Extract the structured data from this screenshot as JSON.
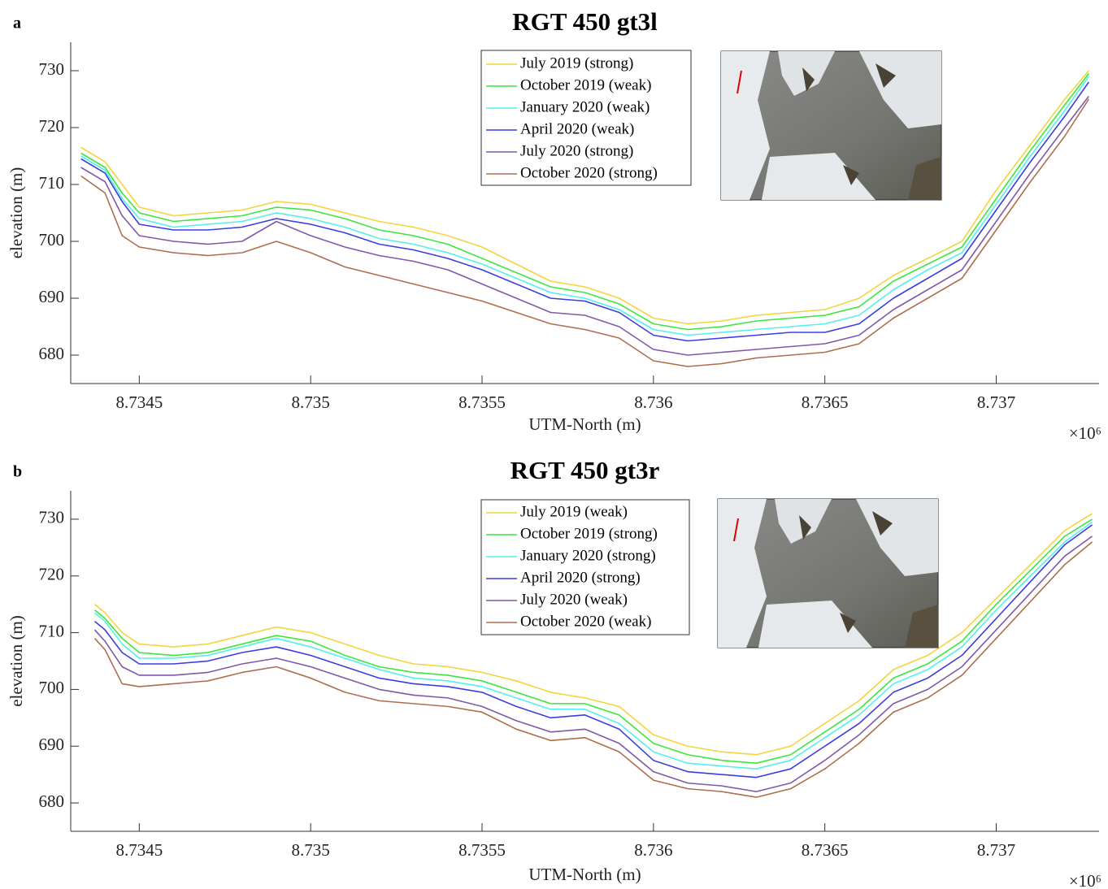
{
  "chart_data": [
    {
      "type": "line",
      "panel_label": "a",
      "title": "RGT 450 gt3l",
      "xlabel": "UTM-North (m)",
      "ylabel": "elevation (m)",
      "x_scale_label": "×10⁶",
      "xlim": [
        8.7343,
        8.7373
      ],
      "ylim": [
        675,
        735
      ],
      "xticks": [
        8.7345,
        8.735,
        8.7355,
        8.736,
        8.7365,
        8.737
      ],
      "yticks": [
        680,
        690,
        700,
        710,
        720,
        730
      ],
      "x": [
        8.73433,
        8.7344,
        8.73445,
        8.7345,
        8.7346,
        8.7347,
        8.7348,
        8.7349,
        8.735,
        8.7351,
        8.7352,
        8.7353,
        8.7354,
        8.7355,
        8.7356,
        8.7357,
        8.7358,
        8.7359,
        8.736,
        8.7361,
        8.7362,
        8.7363,
        8.7364,
        8.7365,
        8.7366,
        8.7367,
        8.7368,
        8.7369,
        8.737,
        8.7371,
        8.7372,
        8.73727
      ],
      "series": [
        {
          "name": "July 2019 (strong)",
          "color": "#f2d43c",
          "values": [
            716.5,
            714,
            710,
            706,
            704.5,
            705,
            705.5,
            707,
            706.5,
            705,
            703.5,
            702.5,
            701,
            699,
            696,
            693,
            692,
            690,
            686.5,
            685.5,
            686,
            687,
            687.5,
            688,
            690,
            694,
            697,
            700,
            709,
            717,
            725,
            730
          ]
        },
        {
          "name": "October 2019 (weak)",
          "color": "#3ce63c",
          "values": [
            715.5,
            713,
            708.5,
            705,
            703.5,
            704,
            704.5,
            706,
            705.5,
            704,
            702,
            701,
            699.5,
            697,
            694.5,
            692,
            691,
            689,
            685.5,
            684.5,
            685,
            686,
            686.5,
            687,
            688.5,
            693,
            696,
            699,
            707.5,
            716,
            724,
            729.5
          ]
        },
        {
          "name": "January 2020 (weak)",
          "color": "#55eeee",
          "values": [
            715,
            712.5,
            707.5,
            704,
            702.5,
            703,
            703.5,
            705,
            704,
            702.5,
            700.5,
            699.5,
            698,
            696,
            693.5,
            691,
            690,
            688,
            684.5,
            683.5,
            684,
            684.5,
            685,
            685.5,
            687,
            691.5,
            695,
            698,
            706.5,
            715,
            723,
            729
          ]
        },
        {
          "name": "April 2020 (weak)",
          "color": "#3c3ce0",
          "values": [
            714.5,
            712,
            707,
            703,
            702,
            702,
            702.5,
            704,
            703,
            701.5,
            699.5,
            698.5,
            697,
            695,
            692.5,
            690,
            689.5,
            687.5,
            683.5,
            682.5,
            683,
            683.5,
            684,
            684,
            685.5,
            690,
            693.5,
            697,
            705.5,
            714,
            722,
            728
          ]
        },
        {
          "name": "July 2020 (strong)",
          "color": "#7f58a8",
          "values": [
            713,
            710.5,
            704.5,
            701,
            700,
            699.5,
            700,
            703.5,
            701,
            699,
            697.5,
            696.5,
            695,
            692.5,
            690,
            687.5,
            687,
            685,
            681,
            680,
            680.5,
            681,
            681.5,
            682,
            683.5,
            688,
            691.5,
            695,
            703.5,
            712,
            720,
            725.5
          ]
        },
        {
          "name": "October 2020 (strong)",
          "color": "#ad6e4e",
          "values": [
            711.5,
            708.5,
            701,
            699,
            698,
            697.5,
            698,
            700,
            698,
            695.5,
            694,
            692.5,
            691,
            689.5,
            687.5,
            685.5,
            684.5,
            683,
            679,
            678,
            678.5,
            679.5,
            680,
            680.5,
            682,
            686.5,
            690,
            693.5,
            702,
            710.5,
            718.5,
            725
          ]
        }
      ]
    },
    {
      "type": "line",
      "panel_label": "b",
      "title": "RGT 450 gt3r",
      "xlabel": "UTM-North (m)",
      "ylabel": "elevation (m)",
      "x_scale_label": "×10⁶",
      "xlim": [
        8.7343,
        8.7373
      ],
      "ylim": [
        675,
        735
      ],
      "xticks": [
        8.7345,
        8.735,
        8.7355,
        8.736,
        8.7365,
        8.737
      ],
      "yticks": [
        680,
        690,
        700,
        710,
        720,
        730
      ],
      "x": [
        8.73437,
        8.7344,
        8.73445,
        8.7345,
        8.7346,
        8.7347,
        8.7348,
        8.7349,
        8.735,
        8.7351,
        8.7352,
        8.7353,
        8.7354,
        8.7355,
        8.7356,
        8.7357,
        8.7358,
        8.7359,
        8.736,
        8.7361,
        8.7362,
        8.7363,
        8.7364,
        8.7365,
        8.7366,
        8.7367,
        8.7368,
        8.7369,
        8.737,
        8.7371,
        8.7372,
        8.73728
      ],
      "series": [
        {
          "name": "July 2019 (weak)",
          "color": "#f2d43c",
          "values": [
            715,
            713.5,
            710,
            708,
            707.5,
            708,
            709.5,
            711,
            710,
            708,
            706,
            704.5,
            704,
            703,
            701.5,
            699.5,
            698.5,
            697,
            692,
            690,
            689,
            688.5,
            690,
            694,
            698,
            703.5,
            706,
            710,
            716,
            722,
            728,
            731
          ]
        },
        {
          "name": "October 2019 (strong)",
          "color": "#3ce63c",
          "values": [
            714,
            712.5,
            709,
            706.5,
            706,
            706.5,
            708,
            709.5,
            708.5,
            706,
            704,
            703,
            702.5,
            701.5,
            699.5,
            697.5,
            697.5,
            695.5,
            690.5,
            688.5,
            687.5,
            687,
            688.5,
            692.5,
            696.5,
            702,
            704.5,
            708.5,
            715,
            721,
            727,
            730
          ]
        },
        {
          "name": "January 2020 (strong)",
          "color": "#55eeee",
          "values": [
            713.5,
            712,
            708,
            705.5,
            705.5,
            706,
            707.5,
            709,
            707.5,
            705.5,
            703.5,
            702,
            701.5,
            700.5,
            698.5,
            696.5,
            696.5,
            694,
            689,
            687,
            686.5,
            686,
            687.5,
            691.5,
            695.5,
            701,
            703.5,
            707.5,
            714,
            720,
            726,
            729.5
          ]
        },
        {
          "name": "April 2020 (strong)",
          "color": "#3c3ce0",
          "values": [
            712,
            710.5,
            706.5,
            704.5,
            704.5,
            705,
            706.5,
            707.5,
            706,
            704,
            702,
            701,
            700.5,
            699.5,
            697,
            695,
            695.5,
            693,
            687.5,
            685.5,
            685,
            684.5,
            686,
            690,
            694,
            699.5,
            702,
            706,
            712.5,
            719,
            725.5,
            729
          ]
        },
        {
          "name": "July 2020 (weak)",
          "color": "#7f58a8",
          "values": [
            710.5,
            708.5,
            704,
            702.5,
            702.5,
            703,
            704.5,
            705.5,
            704,
            702,
            700,
            699,
            698.5,
            697,
            694.5,
            692.5,
            693,
            690.5,
            685.5,
            683.5,
            683,
            682,
            683.5,
            687.5,
            692,
            697.5,
            700,
            704,
            710.5,
            717,
            723.5,
            727
          ]
        },
        {
          "name": "October 2020 (weak)",
          "color": "#ad6e4e",
          "values": [
            709,
            707,
            701,
            700.5,
            701,
            701.5,
            703,
            704,
            702,
            699.5,
            698,
            697.5,
            697,
            696,
            693,
            691,
            691.5,
            689,
            684,
            682.5,
            682,
            681,
            682.5,
            686,
            690.5,
            696,
            698.5,
            702.5,
            709,
            715.5,
            722,
            726
          ]
        }
      ]
    }
  ]
}
